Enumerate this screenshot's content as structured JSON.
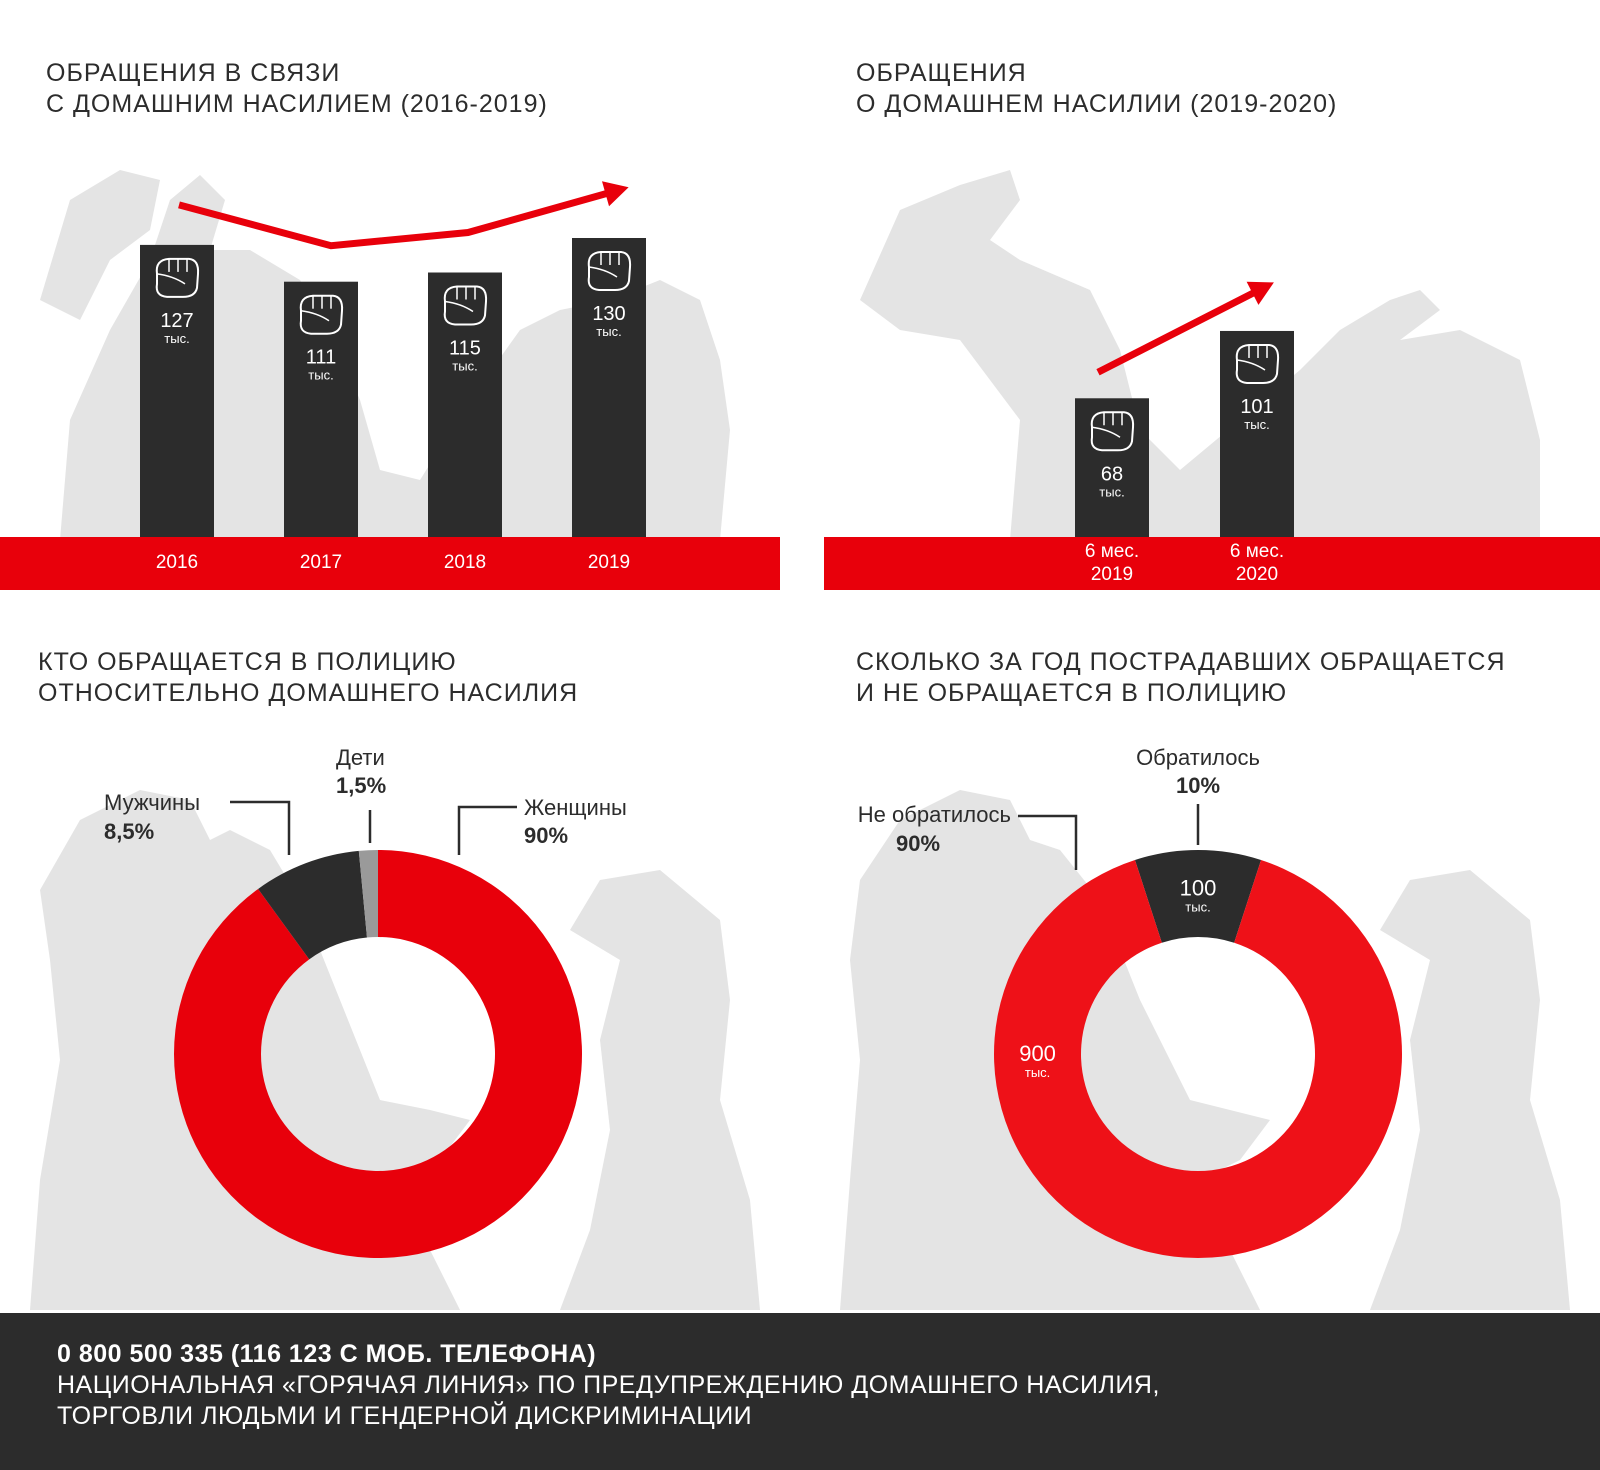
{
  "chart_data": [
    {
      "type": "bar",
      "title": "ОБРАЩЕНИЯ В СВЯЗИ\nС ДОМАШНИМ НАСИЛИЕМ (2016-2019)",
      "categories": [
        "2016",
        "2017",
        "2018",
        "2019"
      ],
      "values": [
        127,
        111,
        115,
        130
      ],
      "value_labels": [
        "127",
        "111",
        "115",
        "130"
      ],
      "unit_label": "тыс.",
      "trend_arrow": true,
      "colors": {
        "bar": "#2c2c2c",
        "axis_band": "#e8000b",
        "arrow": "#e8000b"
      }
    },
    {
      "type": "bar",
      "title": "ОБРАЩЕНИЯ\nО ДОМАШНЕМ НАСИЛИИ (2019-2020)",
      "categories": [
        "6  мес.\n2019",
        "6  мес.\n2020"
      ],
      "values": [
        68,
        101
      ],
      "value_labels": [
        "68",
        "101"
      ],
      "unit_label": "тыс.",
      "trend_arrow": true,
      "colors": {
        "bar": "#2c2c2c",
        "axis_band": "#e8000b",
        "arrow": "#e8000b"
      }
    },
    {
      "type": "pie",
      "donut": true,
      "title": "КТО ОБРАЩАЕТСЯ В ПОЛИЦИЮ\nОТНОСИТЕЛЬНО ДОМАШНЕГО НАСИЛИЯ",
      "slices": [
        {
          "name": "Женщины",
          "value": 90,
          "label": "90%",
          "color": "#e8000b"
        },
        {
          "name": "Мужчины",
          "value": 8.5,
          "label": "8,5%",
          "color": "#2c2c2c"
        },
        {
          "name": "Дети",
          "value": 1.5,
          "label": "1,5%",
          "color": "#9a9a9a"
        }
      ]
    },
    {
      "type": "pie",
      "donut": true,
      "title": "СКОЛЬКО ЗА ГОД ПОСТРАДАВШИХ ОБРАЩАЕТСЯ\nИ НЕ ОБРАЩАЕТСЯ В ПОЛИЦИЮ",
      "slices": [
        {
          "name": "Обратилось",
          "value": 10,
          "label": "10%",
          "inner_value": "100",
          "inner_unit": "тыс.",
          "color": "#2c2c2c"
        },
        {
          "name": "Не обратилось",
          "value": 90,
          "label": "90%",
          "inner_value": "900",
          "inner_unit": "тыс.",
          "color": "#ee1118"
        }
      ]
    }
  ],
  "footer": {
    "phone": "0 800 500 335 (116 123 С МОБ. ТЕЛЕФОНА)",
    "description": "НАЦИОНАЛЬНАЯ «ГОРЯЧАЯ ЛИНИЯ» ПО ПРЕДУПРЕЖДЕНИЮ ДОМАШНЕГО НАСИЛИЯ,\nТОРГОВЛИ ЛЮДЬМИ И ГЕНДЕРНОЙ ДИСКРИМИНАЦИИ"
  }
}
